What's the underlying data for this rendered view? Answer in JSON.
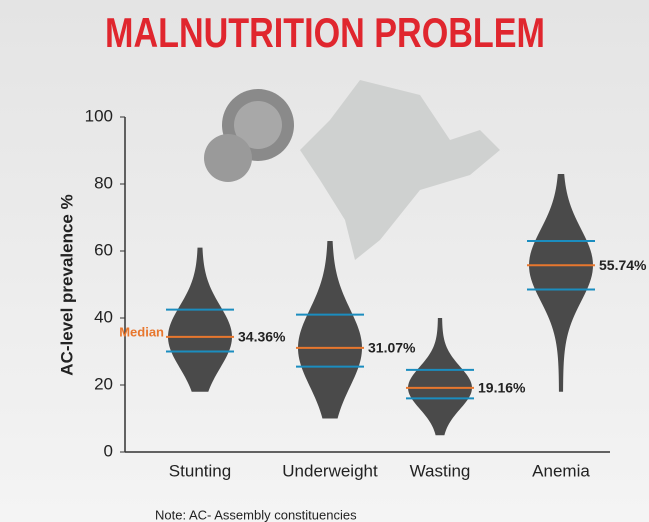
{
  "chart_data": {
    "type": "beeswarm",
    "title": "MALNUTRITION PROBLEM",
    "y_label": "AC-level prevalence %",
    "categories": [
      "Stunting",
      "Underweight",
      "Wasting",
      "Anemia"
    ],
    "min": [
      18,
      10,
      5,
      18
    ],
    "q1": [
      30,
      25.5,
      16,
      48.5
    ],
    "median": [
      34.36,
      31.07,
      19.16,
      55.74
    ],
    "median_labels": [
      "34.36%",
      "31.07%",
      "19.16%",
      "55.74%"
    ],
    "q3": [
      42.5,
      41,
      24.5,
      63
    ],
    "max": [
      61,
      63,
      40,
      83
    ],
    "median_annotation": "Median",
    "note": "Note: AC- Assembly constituencies",
    "ylim": [
      0,
      100
    ],
    "yticks": [
      0,
      20,
      40,
      60,
      80,
      100
    ],
    "dot_color": "#4a4a4a",
    "median_color": "#e8772e",
    "quartile_color": "#1b8dbf"
  }
}
